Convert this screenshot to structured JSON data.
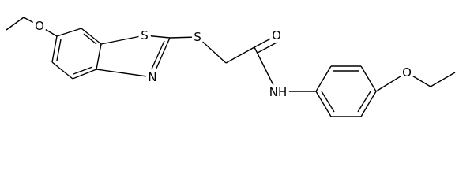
{
  "atoms": [
    "O",
    "S",
    "N",
    "S",
    "O",
    "NH",
    "O"
  ]
}
